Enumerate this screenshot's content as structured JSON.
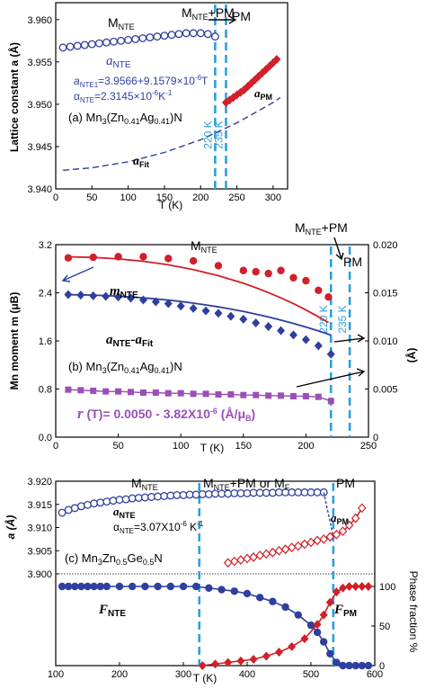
{
  "colors": {
    "blue": "#2e3f9e",
    "red": "#d0202a",
    "purple": "#9a4fb8",
    "cyan": "#2e9fd8",
    "black": "#000000"
  },
  "chart_data": [
    {
      "panel": "a",
      "type": "line",
      "xlabel": "T (K)",
      "ylabel": "Lattice constant a (Å)",
      "xlim": [
        0,
        320
      ],
      "ylim": [
        3.94,
        3.962
      ],
      "xticks": [
        "0",
        "50",
        "100",
        "150",
        "200",
        "250",
        "300"
      ],
      "yticks": [
        "3.940",
        "3.945",
        "3.950",
        "3.955",
        "3.960"
      ],
      "vlines": [
        {
          "x": 220,
          "label": "220 K"
        },
        {
          "x": 235,
          "label": "235 K"
        }
      ],
      "series": [
        {
          "name": "a_NTE",
          "marker": "open-circle",
          "color": "#2e3f9e",
          "x": [
            10,
            20,
            30,
            40,
            50,
            60,
            70,
            80,
            90,
            100,
            110,
            120,
            130,
            140,
            150,
            160,
            170,
            180,
            190,
            200,
            210,
            220
          ],
          "y": [
            3.9567,
            3.9568,
            3.9569,
            3.957,
            3.9571,
            3.9572,
            3.9573,
            3.9574,
            3.9575,
            3.9576,
            3.9577,
            3.9578,
            3.9579,
            3.958,
            3.9581,
            3.9582,
            3.9583,
            3.9584,
            3.9584,
            3.9584,
            3.9583,
            3.958
          ]
        },
        {
          "name": "a_PM",
          "marker": "filled-diamond",
          "color": "#d0202a",
          "x": [
            235,
            240,
            245,
            250,
            255,
            260,
            265,
            270,
            275,
            280,
            285,
            290,
            295,
            300,
            305
          ],
          "y": [
            3.9502,
            3.9505,
            3.9508,
            3.9511,
            3.9514,
            3.9517,
            3.9521,
            3.9525,
            3.9529,
            3.9533,
            3.9537,
            3.9541,
            3.9545,
            3.9549,
            3.9553
          ]
        },
        {
          "name": "a_Fit",
          "line": "dashed",
          "color": "#2e3f9e",
          "x": [
            10,
            50,
            100,
            150,
            200,
            250,
            300,
            310
          ],
          "y": [
            3.9422,
            3.9425,
            3.9432,
            3.9443,
            3.9458,
            3.9478,
            3.9502,
            3.9508
          ]
        }
      ],
      "texts": {
        "phase_nte": "M",
        "phase_nte_sub": "NTE",
        "phase_mix": "M",
        "phase_mix_sub": "NTE",
        "phase_mix_rest": "+PM",
        "phase_pm": "PM",
        "label_anTE": "a",
        "label_anTE_sub": "NTE",
        "eq1": "a",
        "eq1_sub": "NTE1",
        "eq1_rest": "=3.9566+9.1579×10",
        "eq1_exp": "-6",
        "eq1_end": "T",
        "eq2": "α",
        "eq2_sub": "NTE",
        "eq2_rest": "=2.3145×10",
        "eq2_exp": "-6",
        "eq2_end": "K",
        "eq2_exp2": "-1",
        "compound": "(a) Mn",
        "compound_sub1": "3",
        "compound_mid": "(Zn",
        "compound_sub2": "0.41",
        "compound_mid2": "Ag",
        "compound_sub3": "0.41",
        "compound_end": ")N",
        "label_apm": "a",
        "label_apm_sub": "PM",
        "label_afit": "a",
        "label_afit_sub": "Fit"
      }
    },
    {
      "panel": "b",
      "type": "line",
      "xlabel": "T (K)",
      "ylabel": "Mn moment m (μB)",
      "y2label": "(Å)",
      "xlim": [
        0,
        250
      ],
      "ylim": [
        0,
        3.2
      ],
      "y2lim": [
        0,
        0.02
      ],
      "xticks": [
        "0",
        "50",
        "100",
        "150",
        "200",
        "250"
      ],
      "yticks": [
        "0.0",
        "0.8",
        "1.6",
        "2.4",
        "3.2"
      ],
      "y2ticks": [
        "0",
        "0.005",
        "0.010",
        "0.015",
        "0.020"
      ],
      "vlines": [
        {
          "x": 220,
          "label": "220 K"
        },
        {
          "x": 235,
          "label": "235 K"
        }
      ],
      "series": [
        {
          "name": "m_NTE",
          "marker": "filled-circle",
          "color": "#d0202a",
          "x": [
            10,
            30,
            50,
            70,
            90,
            110,
            130,
            150,
            160,
            170,
            180,
            190,
            200,
            210,
            218
          ],
          "y": [
            2.98,
            2.99,
            3.0,
            3.0,
            2.97,
            2.93,
            2.85,
            2.77,
            2.75,
            2.72,
            2.77,
            2.65,
            2.6,
            2.44,
            2.33
          ]
        },
        {
          "name": "a_NTE-a_Fit",
          "marker": "filled-diamond",
          "color": "#2e3f9e",
          "x": [
            10,
            20,
            30,
            40,
            50,
            60,
            70,
            80,
            90,
            100,
            110,
            120,
            130,
            140,
            150,
            160,
            170,
            180,
            190,
            200,
            210,
            220
          ],
          "y": [
            2.37,
            2.36,
            2.35,
            2.34,
            2.33,
            2.31,
            2.28,
            2.25,
            2.22,
            2.18,
            2.14,
            2.1,
            2.06,
            2.01,
            1.96,
            1.9,
            1.84,
            1.77,
            1.7,
            1.62,
            1.52,
            1.38
          ]
        },
        {
          "name": "r(T)",
          "marker": "filled-square",
          "color": "#9a4fb8",
          "x": [
            10,
            20,
            30,
            40,
            50,
            60,
            70,
            80,
            90,
            100,
            110,
            120,
            130,
            140,
            150,
            160,
            170,
            180,
            190,
            200,
            210,
            220
          ],
          "y": [
            0.79,
            0.78,
            0.77,
            0.76,
            0.76,
            0.75,
            0.74,
            0.74,
            0.73,
            0.73,
            0.72,
            0.72,
            0.71,
            0.71,
            0.7,
            0.7,
            0.69,
            0.69,
            0.68,
            0.68,
            0.67,
            0.6
          ]
        }
      ],
      "texts": {
        "phase_nte": "M",
        "phase_nte_sub": "NTE",
        "phase_mix": "M",
        "phase_mix_sub": "NTE",
        "phase_mix_rest": "+PM",
        "phase_pm": "PM",
        "label_m": "m",
        "label_m_sub": "NTE",
        "label_diff": "a",
        "label_diff_sub": "NTE",
        "label_diff_mid": "-a",
        "label_diff_sub2": "Fit",
        "compound": "(b) Mn",
        "compound_sub1": "3",
        "compound_mid": "(Zn",
        "compound_sub2": "0.41",
        "compound_mid2": "Ag",
        "compound_sub3": "0.41",
        "compound_end": ")N",
        "eq_r": "r",
        "eq_r_rest": " (T)= 0.0050 - 3.82X10",
        "eq_r_exp": "-6",
        "eq_r_end": " (Å/μ",
        "eq_r_sub": "B",
        "eq_r_close": ")"
      }
    },
    {
      "panel": "c",
      "type": "line",
      "xlabel": "T (K)",
      "ylabel": "a (Å)",
      "y2label": "Phase fraction %",
      "xlim": [
        100,
        600
      ],
      "ylim_top": [
        3.9,
        3.92
      ],
      "ylim_bottom": [
        0,
        100
      ],
      "xticks": [
        "100",
        "200",
        "300",
        "400",
        "500",
        "600"
      ],
      "yticks": [
        "3.900",
        "3.905",
        "3.910",
        "3.915",
        "3.920"
      ],
      "y2ticks": [
        "0",
        "50",
        "100"
      ],
      "vlines": [
        {
          "x": 325
        },
        {
          "x": 535
        }
      ],
      "series": [
        {
          "name": "a_NTE",
          "marker": "open-circle",
          "color": "#2e3f9e",
          "x": [
            110,
            120,
            130,
            140,
            150,
            160,
            170,
            180,
            190,
            200,
            210,
            220,
            230,
            240,
            250,
            260,
            270,
            280,
            290,
            300,
            310,
            320,
            330,
            340,
            350,
            360,
            370,
            380,
            390,
            400,
            410,
            420,
            430,
            440,
            450,
            460,
            470,
            480,
            490,
            500,
            510,
            520
          ],
          "y": [
            3.9132,
            3.9138,
            3.9142,
            3.9146,
            3.9149,
            3.9152,
            3.9154,
            3.9156,
            3.9158,
            3.916,
            3.9161,
            3.9163,
            3.9164,
            3.9165,
            3.9166,
            3.9167,
            3.9168,
            3.9169,
            3.917,
            3.917,
            3.9171,
            3.9171,
            3.9172,
            3.9172,
            3.9173,
            3.9173,
            3.9173,
            3.9174,
            3.9174,
            3.9174,
            3.9175,
            3.9175,
            3.9175,
            3.9175,
            3.9176,
            3.9176,
            3.9176,
            3.9176,
            3.9176,
            3.9176,
            3.9176,
            3.9176
          ]
        },
        {
          "name": "a_PM",
          "marker": "open-diamond",
          "color": "#d0202a",
          "x": [
            370,
            380,
            390,
            400,
            410,
            420,
            430,
            440,
            450,
            460,
            470,
            480,
            490,
            500,
            510,
            520,
            530,
            540,
            550,
            560,
            570,
            580
          ],
          "y": [
            3.9024,
            3.9027,
            3.903,
            3.9033,
            3.9036,
            3.904,
            3.9043,
            3.9046,
            3.905,
            3.9053,
            3.9057,
            3.906,
            3.9064,
            3.9068,
            3.9072,
            3.9075,
            3.908,
            3.9085,
            3.9092,
            3.9105,
            3.912,
            3.9142
          ]
        },
        {
          "name": "F_NTE",
          "marker": "filled-circle",
          "color": "#2e3f9e",
          "x": [
            110,
            120,
            130,
            140,
            150,
            160,
            170,
            180,
            200,
            220,
            240,
            260,
            280,
            300,
            320,
            340,
            360,
            380,
            400,
            420,
            440,
            460,
            480,
            500,
            510,
            520,
            530,
            540,
            550,
            560,
            570,
            580,
            590
          ],
          "y": [
            100,
            100,
            100,
            100,
            100,
            100,
            100,
            100,
            100,
            100,
            100,
            100,
            100,
            100,
            100,
            98,
            96,
            94,
            91,
            86,
            81,
            74,
            64,
            51,
            42,
            30,
            15,
            4,
            0,
            0,
            0,
            0,
            0
          ]
        },
        {
          "name": "F_PM",
          "marker": "filled-diamond",
          "color": "#d0202a",
          "x": [
            330,
            350,
            370,
            390,
            410,
            430,
            450,
            470,
            490,
            510,
            520,
            530,
            540,
            550,
            560,
            570,
            580,
            590
          ],
          "y": [
            0,
            2,
            4,
            6,
            8,
            12,
            17,
            24,
            34,
            52,
            64,
            80,
            93,
            98,
            100,
            100,
            100,
            100
          ]
        }
      ],
      "texts": {
        "phase_nte": "M",
        "phase_nte_sub": "NTE",
        "phase_mix": "M",
        "phase_mix_sub": "NTE",
        "phase_mix_rest": "+PM or M",
        "phase_mix_sub2": "F",
        "phase_pm": "PM",
        "label_a": "a",
        "label_a_sub": "NTE",
        "eq": "α",
        "eq_sub": "NTE",
        "eq_rest": "=3.07X10",
        "eq_exp": "-6",
        "eq_end": " K",
        "eq_exp2": "-1",
        "compound": "(c) Mn",
        "compound_sub1": "3",
        "compound_mid": "Zn",
        "compound_sub2": "0.5",
        "compound_mid2": "Ge",
        "compound_sub3": "0.5",
        "compound_end": "N",
        "label_apm": "a",
        "label_apm_sub": "PM",
        "label_fnte": "F",
        "label_fnte_sub": "NTE",
        "label_fpm": "F",
        "label_fpm_sub": "PM"
      }
    }
  ]
}
